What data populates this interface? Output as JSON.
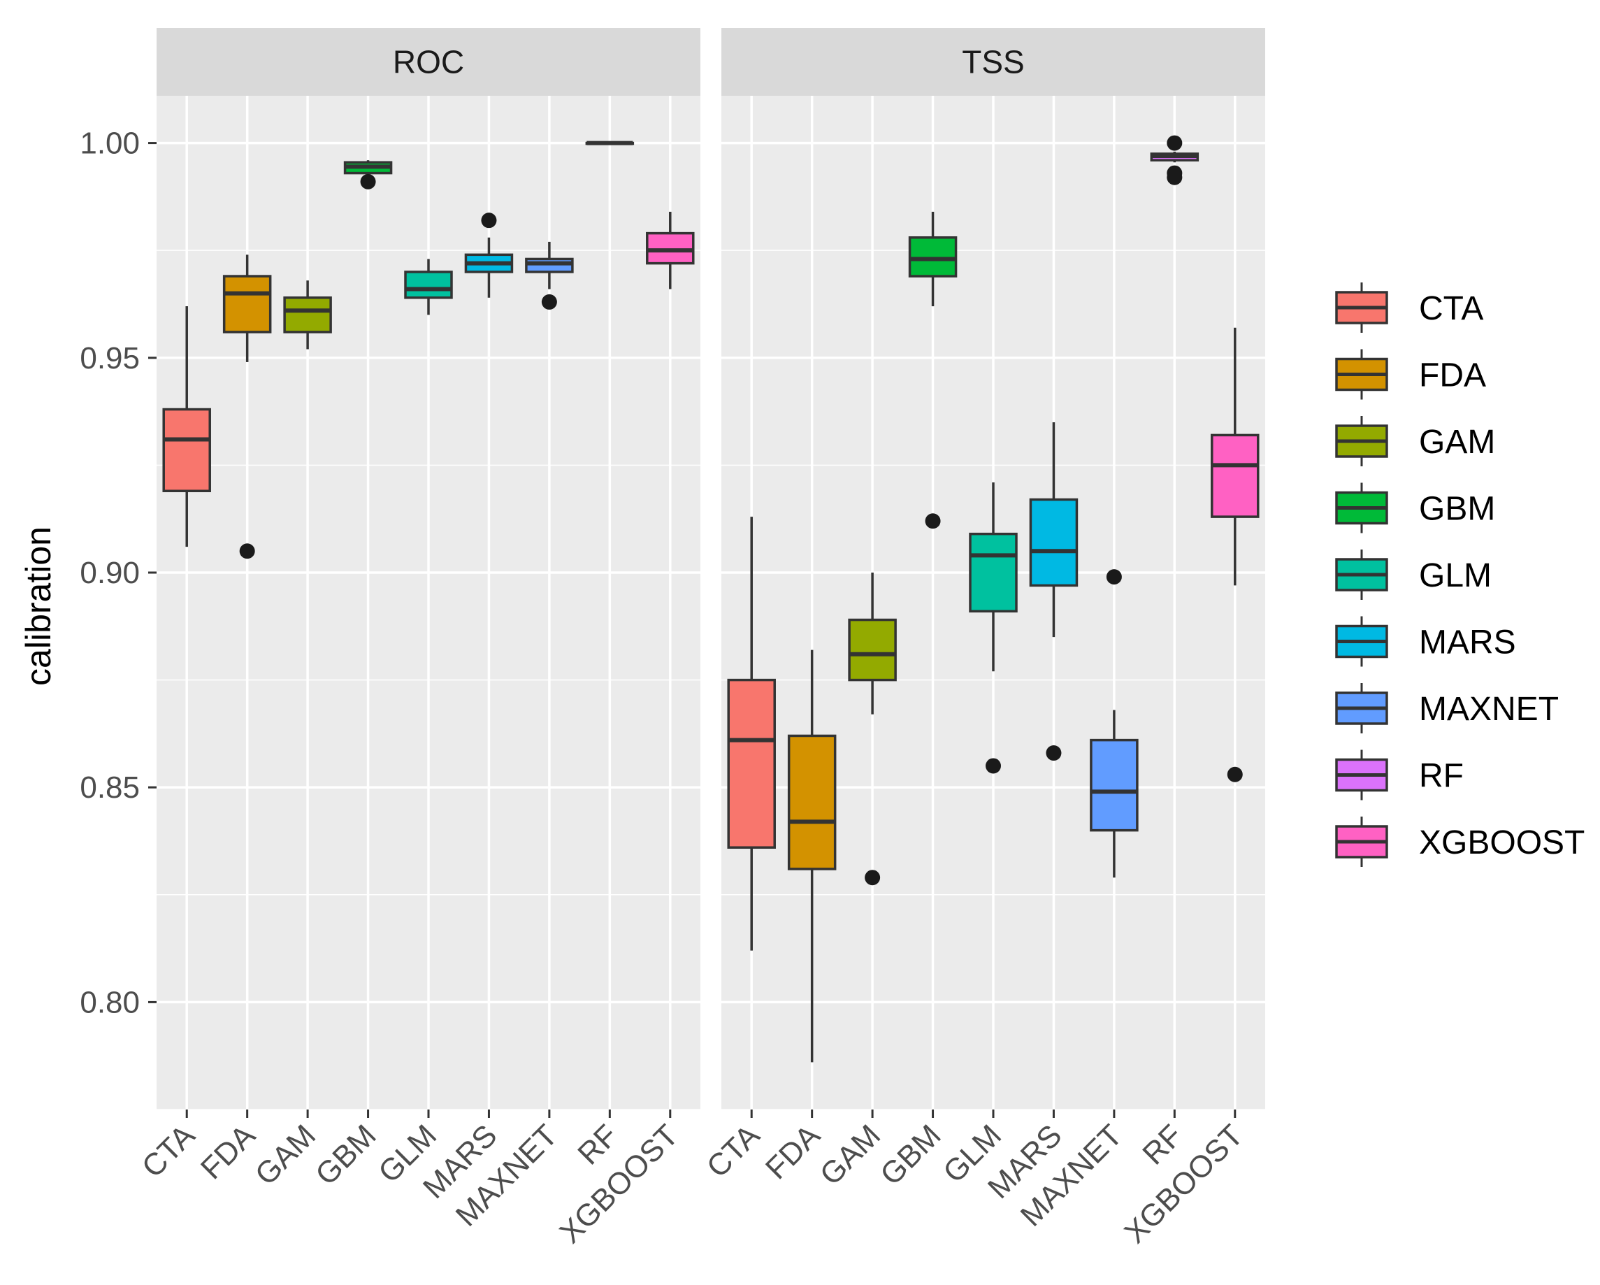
{
  "chart_data": {
    "type": "boxplot",
    "ylabel": "calibration",
    "ylim": [
      0.775,
      1.011
    ],
    "yticks": [
      0.8,
      0.85,
      0.9,
      0.95,
      1.0
    ],
    "ytick_labels": [
      "0.80",
      "0.85",
      "0.90",
      "0.95",
      "1.00"
    ],
    "categories": [
      "CTA",
      "FDA",
      "GAM",
      "GBM",
      "GLM",
      "MARS",
      "MAXNET",
      "RF",
      "XGBOOST"
    ],
    "colors": {
      "CTA": "#F8766D",
      "FDA": "#D39200",
      "GAM": "#93AA00",
      "GBM": "#00BA38",
      "GLM": "#00C19F",
      "MARS": "#00B9E3",
      "MAXNET": "#619CFF",
      "RF": "#DB72FB",
      "XGBOOST": "#FF61C3"
    },
    "legend": {
      "position": "right",
      "entries": [
        "CTA",
        "FDA",
        "GAM",
        "GBM",
        "GLM",
        "MARS",
        "MAXNET",
        "RF",
        "XGBOOST"
      ]
    },
    "panels": [
      {
        "title": "ROC",
        "boxes": [
          {
            "name": "CTA",
            "whisker_low": 0.906,
            "q1": 0.919,
            "median": 0.931,
            "q3": 0.938,
            "whisker_high": 0.962,
            "outliers": []
          },
          {
            "name": "FDA",
            "whisker_low": 0.949,
            "q1": 0.956,
            "median": 0.965,
            "q3": 0.969,
            "whisker_high": 0.974,
            "outliers": [
              0.905
            ]
          },
          {
            "name": "GAM",
            "whisker_low": 0.952,
            "q1": 0.956,
            "median": 0.961,
            "q3": 0.964,
            "whisker_high": 0.968,
            "outliers": []
          },
          {
            "name": "GBM",
            "whisker_low": 0.9925,
            "q1": 0.993,
            "median": 0.9945,
            "q3": 0.9955,
            "whisker_high": 0.996,
            "outliers": [
              0.991
            ]
          },
          {
            "name": "GLM",
            "whisker_low": 0.96,
            "q1": 0.964,
            "median": 0.966,
            "q3": 0.97,
            "whisker_high": 0.973,
            "outliers": []
          },
          {
            "name": "MARS",
            "whisker_low": 0.964,
            "q1": 0.97,
            "median": 0.972,
            "q3": 0.974,
            "whisker_high": 0.978,
            "outliers": [
              0.982
            ]
          },
          {
            "name": "MAXNET",
            "whisker_low": 0.966,
            "q1": 0.97,
            "median": 0.972,
            "q3": 0.973,
            "whisker_high": 0.977,
            "outliers": [
              0.963
            ]
          },
          {
            "name": "RF",
            "whisker_low": 1.0,
            "q1": 1.0,
            "median": 1.0,
            "q3": 1.0,
            "whisker_high": 1.0,
            "outliers": []
          },
          {
            "name": "XGBOOST",
            "whisker_low": 0.966,
            "q1": 0.972,
            "median": 0.975,
            "q3": 0.979,
            "whisker_high": 0.984,
            "outliers": []
          }
        ]
      },
      {
        "title": "TSS",
        "boxes": [
          {
            "name": "CTA",
            "whisker_low": 0.812,
            "q1": 0.836,
            "median": 0.861,
            "q3": 0.875,
            "whisker_high": 0.913,
            "outliers": []
          },
          {
            "name": "FDA",
            "whisker_low": 0.786,
            "q1": 0.831,
            "median": 0.842,
            "q3": 0.862,
            "whisker_high": 0.882,
            "outliers": []
          },
          {
            "name": "GAM",
            "whisker_low": 0.867,
            "q1": 0.875,
            "median": 0.881,
            "q3": 0.889,
            "whisker_high": 0.9,
            "outliers": [
              0.829
            ]
          },
          {
            "name": "GBM",
            "whisker_low": 0.962,
            "q1": 0.969,
            "median": 0.973,
            "q3": 0.978,
            "whisker_high": 0.984,
            "outliers": [
              0.912
            ]
          },
          {
            "name": "GLM",
            "whisker_low": 0.877,
            "q1": 0.891,
            "median": 0.904,
            "q3": 0.909,
            "whisker_high": 0.921,
            "outliers": [
              0.855
            ]
          },
          {
            "name": "MARS",
            "whisker_low": 0.885,
            "q1": 0.897,
            "median": 0.905,
            "q3": 0.917,
            "whisker_high": 0.935,
            "outliers": [
              0.858
            ]
          },
          {
            "name": "MAXNET",
            "whisker_low": 0.829,
            "q1": 0.84,
            "median": 0.849,
            "q3": 0.861,
            "whisker_high": 0.868,
            "outliers": [
              0.899
            ]
          },
          {
            "name": "RF",
            "whisker_low": 0.9955,
            "q1": 0.996,
            "median": 0.997,
            "q3": 0.9975,
            "whisker_high": 0.998,
            "outliers": [
              0.992,
              0.993,
              1.0
            ]
          },
          {
            "name": "XGBOOST",
            "whisker_low": 0.897,
            "q1": 0.913,
            "median": 0.925,
            "q3": 0.932,
            "whisker_high": 0.957,
            "outliers": [
              0.853
            ]
          }
        ]
      }
    ]
  }
}
